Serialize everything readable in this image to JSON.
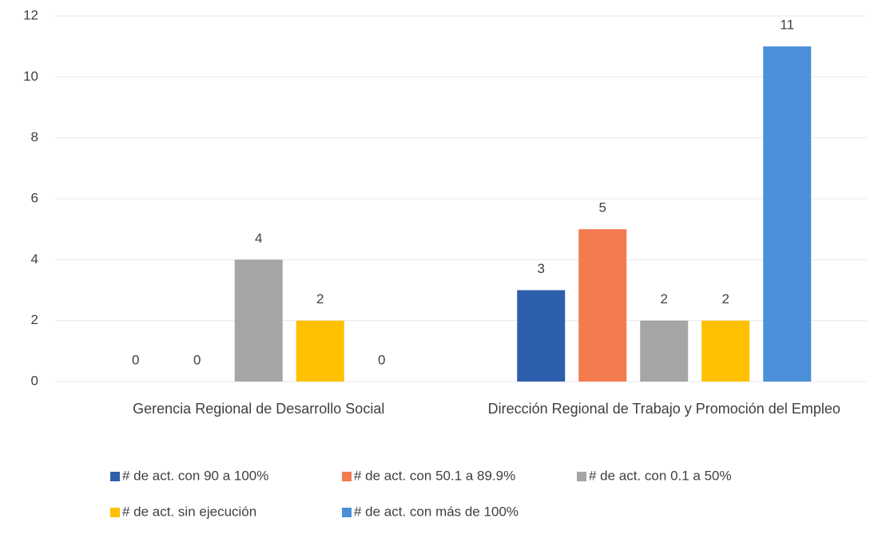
{
  "chart_data": {
    "type": "bar",
    "categories": [
      "Gerencia Regional de Desarrollo Social",
      "Dirección Regional de Trabajo y Promoción del Empleo"
    ],
    "series": [
      {
        "name": "# de act. con 90 a 100%",
        "color": "#2e5fad",
        "values": [
          0,
          3
        ]
      },
      {
        "name": "# de act. con 50.1 a 89.9%",
        "color": "#f47a50",
        "values": [
          0,
          5
        ]
      },
      {
        "name": "# de act. con 0.1 a 50%",
        "color": "#a5a5a5",
        "values": [
          4,
          2
        ]
      },
      {
        "name": "# de act. sin ejecución",
        "color": "#ffc000",
        "values": [
          2,
          2
        ]
      },
      {
        "name": "# de act. con más de 100%",
        "color": "#4a8fd8",
        "values": [
          0,
          11
        ]
      }
    ],
    "ylim": [
      0,
      12
    ],
    "yticks": [
      0,
      2,
      4,
      6,
      8,
      10,
      12
    ],
    "grid": true,
    "legend": "bottom"
  }
}
